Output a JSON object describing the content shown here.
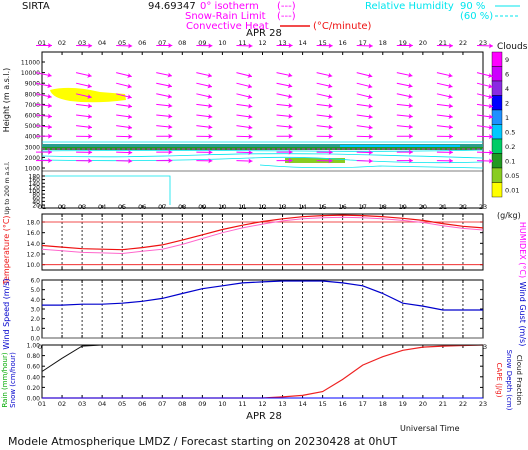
{
  "header": {
    "site": "SIRTA",
    "coords": "94.69347",
    "legend_isotherm": "0° isotherm",
    "legend_isotherm_sym": "(---)",
    "legend_snowrain": "Snow-Rain Limit",
    "legend_snowrain_sym": "(---)",
    "legend_convective": "Convective Heat",
    "legend_convective_unit": "(°C/minute)",
    "legend_rh": "Relative Humidity",
    "legend_rh90": "90 %",
    "legend_rh60": "(60 %)"
  },
  "hours": [
    "01",
    "02",
    "03",
    "04",
    "05",
    "06",
    "07",
    "08",
    "09",
    "10",
    "11",
    "12",
    "13",
    "14",
    "15",
    "16",
    "17",
    "18",
    "19",
    "20",
    "21",
    "22",
    "23"
  ],
  "date_label": "APR 28",
  "footer": {
    "universal_time": "Universal Time",
    "model": "Modele Atmospherique LMDZ / Forecast starting on 20230428 at 0hUT"
  },
  "colors": {
    "magenta": "#ff00ff",
    "cyan": "#00e5ee",
    "temperature": "#ee1111",
    "humidex": "#ff66cc",
    "wind": "#0000cc",
    "gust": "#aaaaaa",
    "cape": "#ee2222",
    "rain": "#0000ff",
    "snow": "#ff00ff"
  },
  "chart_data": [
    {
      "type": "heatmap",
      "panel": "clouds-height",
      "ylabel": "Height (m a.s.l.)",
      "ylabel_low": "Up to 200 m a.s.l.",
      "y_ticks": [
        11000,
        10000,
        9000,
        8000,
        7000,
        6000,
        5000,
        4000,
        3000,
        2000,
        1000,
        180,
        160,
        140,
        120,
        100,
        80,
        60,
        40,
        20
      ],
      "x_ticks": [
        "01",
        "02",
        "03",
        "04",
        "05",
        "06",
        "07",
        "08",
        "09",
        "10",
        "11",
        "12",
        "13",
        "14",
        "15",
        "16",
        "17",
        "18",
        "19",
        "20",
        "21",
        "22",
        "23"
      ],
      "colorbar": {
        "title": "Clouds",
        "unit": "(g/kg)",
        "levels": [
          "9",
          "6",
          "4",
          "2",
          "1",
          "0.5",
          "0.2",
          "0.1",
          "0.05",
          "0.01"
        ],
        "colors": [
          "#ff00ff",
          "#cc00ff",
          "#8a2be2",
          "#0000ff",
          "#1e90ff",
          "#00c8ff",
          "#00cc66",
          "#229922",
          "#88cc22",
          "#ffff00"
        ]
      },
      "wind_arrows": {
        "levels_m": [
          10000,
          9000,
          8000,
          7000,
          6000,
          5000,
          4000,
          2500,
          1700,
          900
        ],
        "hours": [
          1,
          3,
          5,
          7,
          9,
          11,
          13,
          15,
          17,
          19,
          21,
          23
        ]
      }
    },
    {
      "type": "line",
      "panel": "temperature",
      "ylabel": "Temperature (°C)",
      "ylabel_right": "HUMIDEX (°C)",
      "y_ticks": [
        18.0,
        16.0,
        14.0,
        12.0,
        10.0
      ],
      "ylim": [
        9.0,
        19.5
      ],
      "x": [
        1,
        2,
        3,
        4,
        5,
        6,
        7,
        8,
        9,
        10,
        11,
        12,
        13,
        14,
        15,
        16,
        17,
        18,
        19,
        20,
        21,
        22,
        23
      ],
      "series": [
        {
          "values": [
            13.6,
            13.3,
            13.0,
            12.9,
            12.8,
            13.2,
            13.7,
            14.6,
            15.6,
            16.6,
            17.4,
            18.1,
            18.6,
            19.0,
            19.2,
            19.3,
            19.2,
            19.0,
            18.7,
            18.3,
            17.7,
            17.2,
            16.9
          ]
        },
        {
          "values": [
            12.9,
            12.6,
            12.3,
            12.2,
            12.1,
            12.5,
            12.9,
            13.8,
            14.9,
            16.0,
            16.9,
            17.6,
            18.2,
            18.6,
            18.8,
            18.9,
            18.8,
            18.6,
            18.3,
            17.9,
            17.3,
            16.8,
            16.5
          ]
        }
      ],
      "ref_lines": [
        10.0,
        18.0
      ]
    },
    {
      "type": "line",
      "panel": "wind",
      "ylabel": "Wind Speed (m/s)",
      "ylabel_right": "Wind Gust (m/s)",
      "y_ticks": [
        6.0,
        5.0,
        4.0,
        3.0,
        2.0,
        1.0,
        0.0
      ],
      "ylim": [
        0,
        6.0
      ],
      "x": [
        1,
        2,
        3,
        4,
        5,
        6,
        7,
        8,
        9,
        10,
        11,
        12,
        13,
        14,
        15,
        16,
        17,
        18,
        19,
        20,
        21,
        22,
        23
      ],
      "series": [
        {
          "values": [
            3.4,
            3.4,
            3.5,
            3.5,
            3.6,
            3.8,
            4.1,
            4.6,
            5.1,
            5.4,
            5.7,
            5.8,
            5.9,
            5.9,
            5.9,
            5.7,
            5.4,
            4.6,
            3.6,
            3.3,
            2.9,
            2.9,
            2.9
          ]
        }
      ]
    },
    {
      "type": "line",
      "panel": "precipitation",
      "ylabel_left": "Rain (mm/hour)",
      "ylabel_left2": "Snow (cm/hour)",
      "ylabel_right": "CAPE (J/g)",
      "ylabel_right2": "Snow Depth (cm)",
      "ylabel_right3": "Cloud Fraction",
      "y_ticks": [
        1.0,
        0.8,
        0.6,
        0.4,
        0.2,
        0.0
      ],
      "ylim": [
        0,
        1.0
      ],
      "x": [
        1,
        2,
        3,
        4,
        5,
        6,
        7,
        8,
        9,
        10,
        11,
        12,
        13,
        14,
        15,
        16,
        17,
        18,
        19,
        20,
        21,
        22,
        23
      ],
      "series": [
        {
          "values": [
            0,
            0,
            0,
            0,
            0,
            0,
            0,
            0,
            0,
            0,
            0,
            0,
            0.02,
            0.05,
            0.12,
            0.35,
            0.62,
            0.78,
            0.9,
            0.96,
            0.98,
            0.99,
            1.0
          ]
        },
        {
          "values": [
            0.5,
            0.75,
            0.98,
            1.0,
            1.0,
            1.0,
            1.0,
            1.0,
            1.0,
            1.0,
            1.0,
            1.0,
            1.0,
            1.0,
            1.0,
            1.0,
            1.0,
            1.0,
            1.0,
            1.0,
            1.0,
            1.0,
            1.0
          ]
        },
        {
          "values": [
            0,
            0,
            0,
            0,
            0,
            0,
            0,
            0,
            0,
            0,
            0,
            0,
            0,
            0,
            0,
            0,
            0,
            0,
            0,
            0,
            0,
            0,
            0
          ]
        }
      ]
    }
  ]
}
